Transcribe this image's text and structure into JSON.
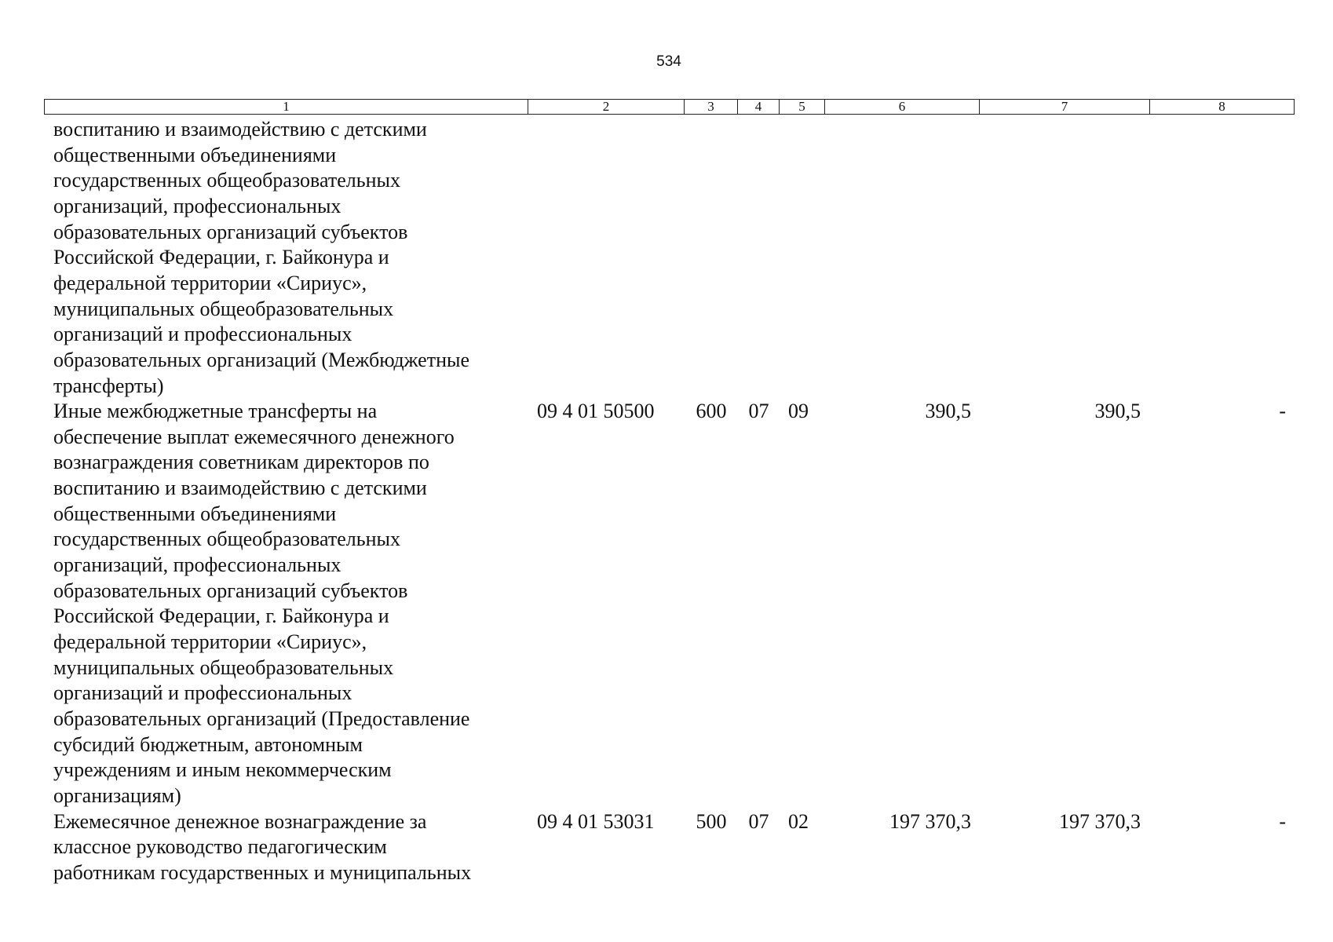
{
  "header": {
    "page_number": "534"
  },
  "table": {
    "columns": [
      "1",
      "2",
      "3",
      "4",
      "5",
      "6",
      "7",
      "8"
    ],
    "rows": [
      {
        "name": [
          "воспитанию и взаимодействию с детскими",
          "общественными объединениями",
          "государственных общеобразовательных",
          "организаций, профессиональных",
          "образовательных организаций субъектов",
          "Российской Федерации, г. Байконура и",
          "федеральной территории «Сириус»,",
          "муниципальных общеобразовательных",
          "организаций и профессиональных",
          "образовательных организаций (Межбюджетные",
          "трансферты)"
        ]
      },
      {
        "name": [
          "Иные межбюджетные трансферты на",
          "обеспечение выплат ежемесячного денежного",
          "вознаграждения советникам директоров по",
          "воспитанию и взаимодействию с детскими",
          "общественными объединениями",
          "государственных общеобразовательных",
          "организаций, профессиональных",
          "образовательных организаций субъектов",
          "Российской Федерации, г. Байконура и",
          "федеральной территории «Сириус»,",
          "муниципальных общеобразовательных",
          "организаций и профессиональных",
          "образовательных организаций (Предоставление",
          "субсидий бюджетным, автономным",
          "учреждениям и иным некоммерческим",
          "организациям)"
        ],
        "code": "09 4 01 50500",
        "vr": "600",
        "rz": "07",
        "pr": "09",
        "sum1": "390,5",
        "sum2": "390,5",
        "sum3": "-"
      },
      {
        "name": [
          "Ежемесячное денежное вознаграждение за",
          "классное руководство педагогическим",
          "работникам государственных и муниципальных"
        ],
        "code": "09 4 01 53031",
        "vr": "500",
        "rz": "07",
        "pr": "02",
        "sum1": "197 370,3",
        "sum2": "197 370,3",
        "sum3": "-"
      }
    ]
  }
}
